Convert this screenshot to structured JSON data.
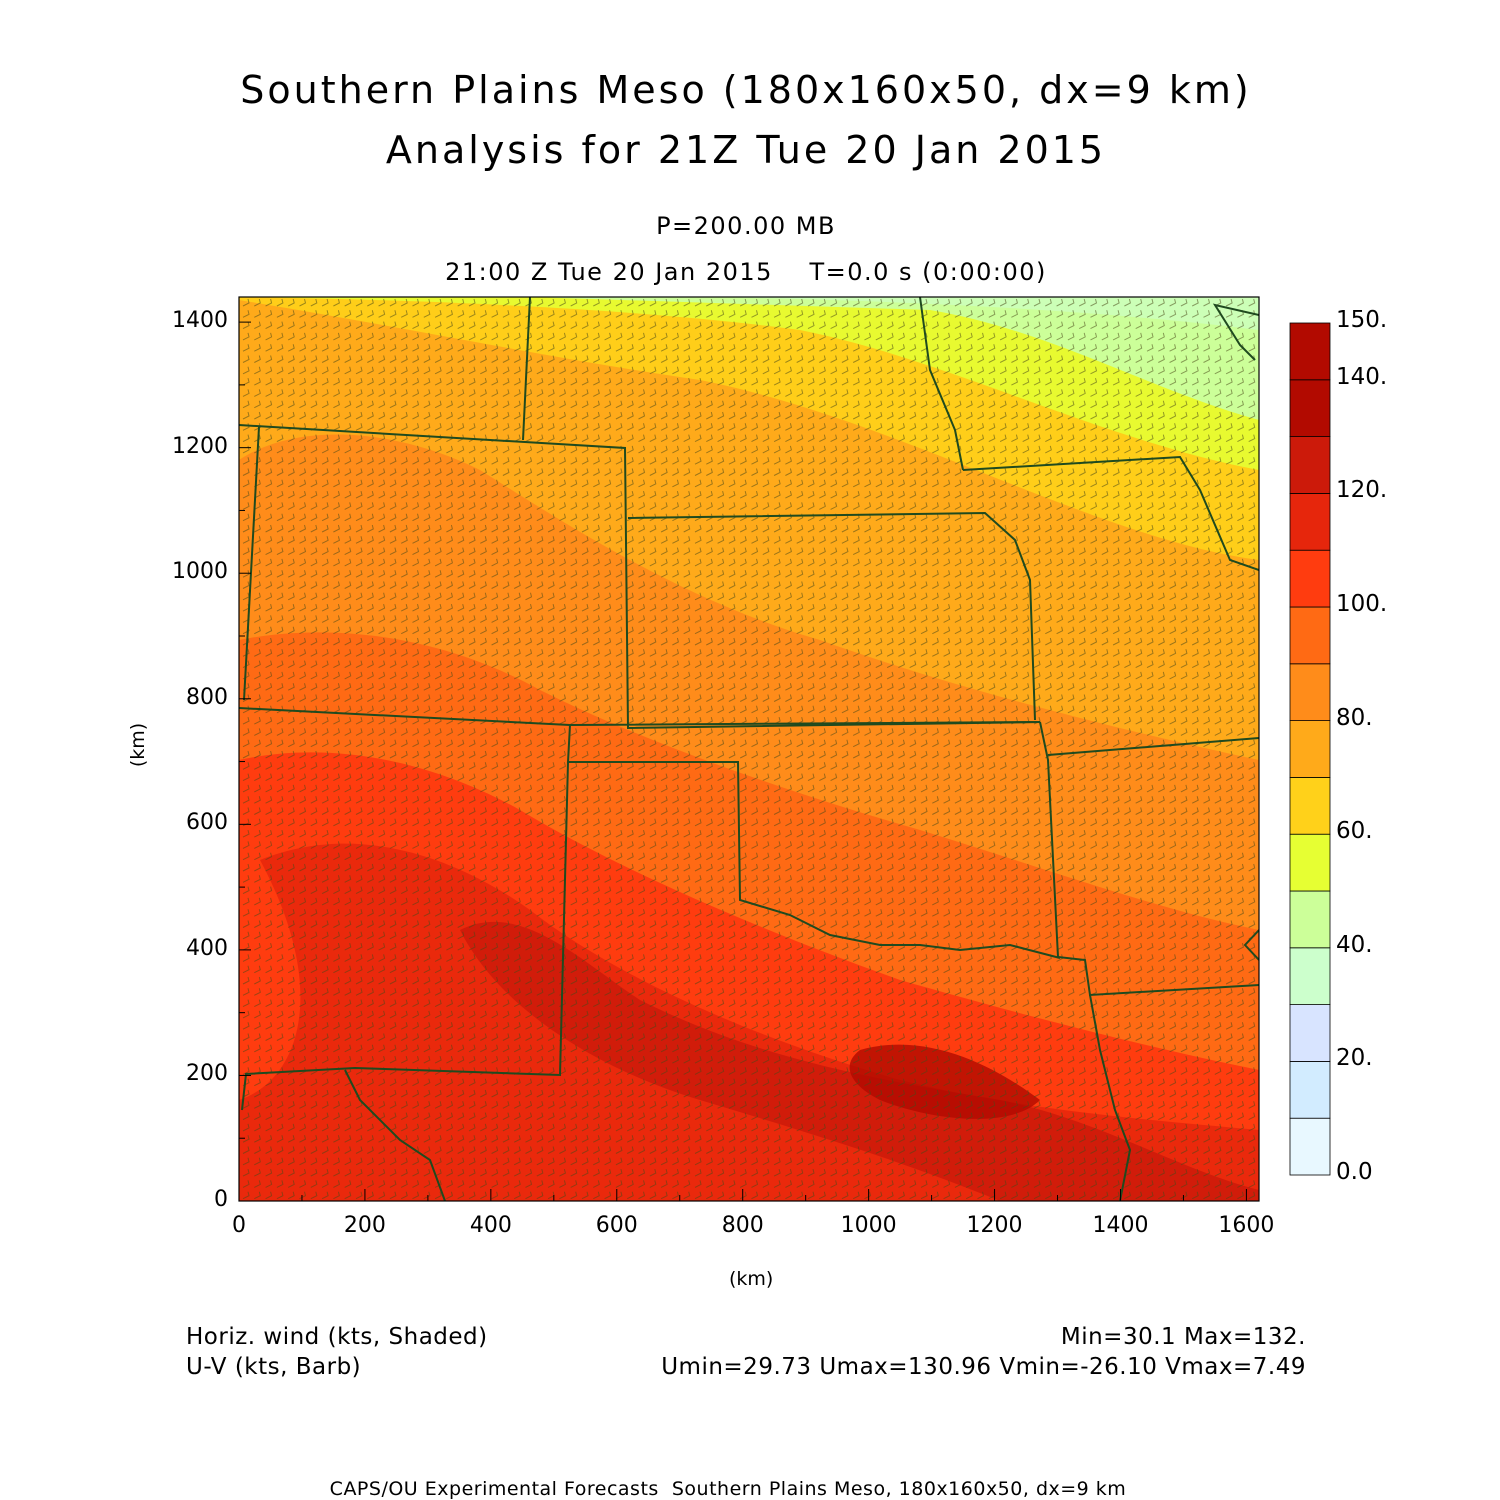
{
  "header": {
    "title_line1": "Southern Plains Meso (180x160x50, dx=9 km)",
    "title_line2": "Analysis for 21Z Tue 20 Jan 2015",
    "level": "P=200.00 MB",
    "time": "21:00 Z Tue 20 Jan 2015    T=0.0 s (0:00:00)"
  },
  "axes": {
    "x_label": "(km)",
    "y_label": "(km)",
    "x_ticks": [
      "0",
      "200",
      "400",
      "600",
      "800",
      "1000",
      "1200",
      "1400",
      "1600"
    ],
    "y_ticks": [
      "0",
      "200",
      "400",
      "600",
      "800",
      "1000",
      "1200",
      "1400"
    ],
    "x_range_km": [
      0,
      1620
    ],
    "y_range_km": [
      0,
      1440
    ]
  },
  "colorbar": {
    "labels": [
      "0.0",
      "20.",
      "40.",
      "60.",
      "80.",
      "100.",
      "120.",
      "140.",
      "150."
    ],
    "levels": [
      0,
      10,
      20,
      30,
      40,
      50,
      60,
      70,
      80,
      90,
      100,
      110,
      120,
      130,
      140,
      150
    ],
    "colors": [
      "#e8f8ff",
      "#d2ecff",
      "#d8e4ff",
      "#ccffcc",
      "#ccff99",
      "#e6ff33",
      "#ffd11a",
      "#ffaa1a",
      "#ff8c1a",
      "#ff6a14",
      "#ff3c0f",
      "#e6260c",
      "#cc1a0a",
      "#b20a00",
      "#b20a00"
    ]
  },
  "footer": {
    "field1": "Horiz. wind (kts, Shaded)",
    "field2": "U-V (kts, Barb)",
    "minmax": "Min=30.1 Max=132.",
    "uv_stats": "Umin=29.73 Umax=130.96 Vmin=-26.10 Vmax=7.49",
    "credit": "CAPS/OU Experimental Forecasts  Southern Plains Meso, 180x160x50, dx=9 km"
  },
  "field": {
    "name": "Horizontal wind speed at 200 mb",
    "units": "kts",
    "min": 30.1,
    "max": 132
  }
}
